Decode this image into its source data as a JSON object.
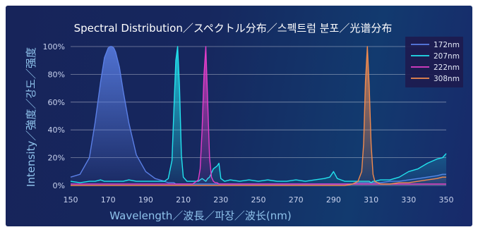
{
  "chart_data": {
    "type": "line",
    "title": "Spectral Distribution／スペクトル分布／스펙트럼 분포／光谱分布",
    "xlabel": "Wavelength／波長／파장／波长(nm)",
    "ylabel": "Intensity／強度／강도／强度",
    "xlim": [
      150,
      350
    ],
    "ylim": [
      0,
      100
    ],
    "x_ticks": [
      "150",
      "170",
      "190",
      "210",
      "230",
      "250",
      "270",
      "290",
      "310",
      "330",
      "350"
    ],
    "y_ticks": [
      "0%",
      "20%",
      "40%",
      "60%",
      "80%",
      "100%"
    ],
    "legend_position": "top-right",
    "grid": true,
    "x": [
      150,
      155,
      160,
      163,
      166,
      168,
      170,
      171,
      172,
      173,
      174,
      176,
      178,
      181,
      185,
      190,
      195,
      200,
      202,
      204,
      205,
      206,
      207,
      208,
      209,
      210,
      212,
      215,
      218,
      219,
      220,
      221,
      222,
      223,
      224,
      225,
      226,
      227,
      228,
      229,
      230,
      232,
      235,
      240,
      245,
      250,
      255,
      260,
      265,
      270,
      275,
      280,
      285,
      288,
      290,
      292,
      294,
      296,
      300,
      303,
      305,
      306,
      307,
      308,
      309,
      310,
      311,
      312,
      315,
      320,
      325,
      330,
      335,
      340,
      345,
      348,
      350
    ],
    "series": [
      {
        "name": "172nm",
        "color": "#5a7fe6",
        "values": [
          6,
          8,
          20,
          45,
          75,
          92,
          99,
          100,
          100,
          99,
          96,
          85,
          68,
          45,
          22,
          10,
          5,
          3,
          2,
          2,
          2,
          1,
          1,
          1,
          1,
          1,
          1,
          1,
          1,
          1,
          1,
          1,
          1,
          1,
          1,
          1,
          1,
          1,
          1,
          1,
          1,
          1,
          1,
          1,
          1,
          1,
          1,
          1,
          1,
          1,
          1,
          1,
          1,
          1,
          1,
          1,
          1,
          1,
          1,
          2,
          2,
          2,
          2,
          2,
          2,
          2,
          2,
          2,
          2,
          3,
          3,
          4,
          5,
          6,
          7,
          8,
          8
        ]
      },
      {
        "name": "207nm",
        "color": "#22e3ee",
        "values": [
          3,
          2,
          3,
          3,
          4,
          3,
          3,
          3,
          3,
          3,
          3,
          3,
          3,
          4,
          3,
          3,
          3,
          3,
          5,
          18,
          55,
          90,
          100,
          70,
          22,
          6,
          3,
          3,
          3,
          4,
          5,
          4,
          3,
          5,
          6,
          9,
          12,
          13,
          14,
          16,
          5,
          3,
          4,
          3,
          4,
          3,
          4,
          3,
          3,
          4,
          3,
          4,
          5,
          6,
          10,
          5,
          4,
          3,
          3,
          3,
          3,
          3,
          3,
          3,
          3,
          2,
          3,
          3,
          4,
          4,
          6,
          10,
          12,
          16,
          19,
          20,
          23
        ]
      },
      {
        "name": "222nm",
        "color": "#e23ec9",
        "values": [
          1,
          1,
          1,
          1,
          1,
          1,
          1,
          1,
          1,
          1,
          1,
          1,
          1,
          1,
          1,
          1,
          1,
          1,
          1,
          1,
          1,
          1,
          1,
          1,
          1,
          1,
          1,
          1,
          4,
          12,
          40,
          80,
          100,
          60,
          20,
          6,
          3,
          2,
          2,
          1,
          1,
          1,
          1,
          1,
          1,
          1,
          1,
          1,
          1,
          1,
          1,
          1,
          1,
          1,
          1,
          1,
          1,
          1,
          1,
          1,
          1,
          1,
          1,
          1,
          1,
          1,
          1,
          1,
          1,
          1,
          1,
          1,
          1,
          1,
          1,
          1,
          1
        ]
      },
      {
        "name": "308nm",
        "color": "#f08a4e",
        "values": [
          0,
          0,
          0,
          0,
          0,
          0,
          0,
          0,
          0,
          0,
          0,
          0,
          0,
          0,
          0,
          0,
          0,
          0,
          0,
          0,
          0,
          0,
          0,
          0,
          0,
          0,
          0,
          0,
          0,
          0,
          0,
          0,
          0,
          0,
          0,
          0,
          0,
          0,
          0,
          0,
          0,
          0,
          0,
          0,
          0,
          0,
          0,
          0,
          0,
          0,
          0,
          0,
          0,
          0,
          0,
          0,
          0,
          0,
          1,
          3,
          10,
          30,
          75,
          100,
          72,
          30,
          8,
          3,
          1,
          1,
          2,
          2,
          3,
          4,
          5,
          6,
          6
        ]
      }
    ]
  }
}
